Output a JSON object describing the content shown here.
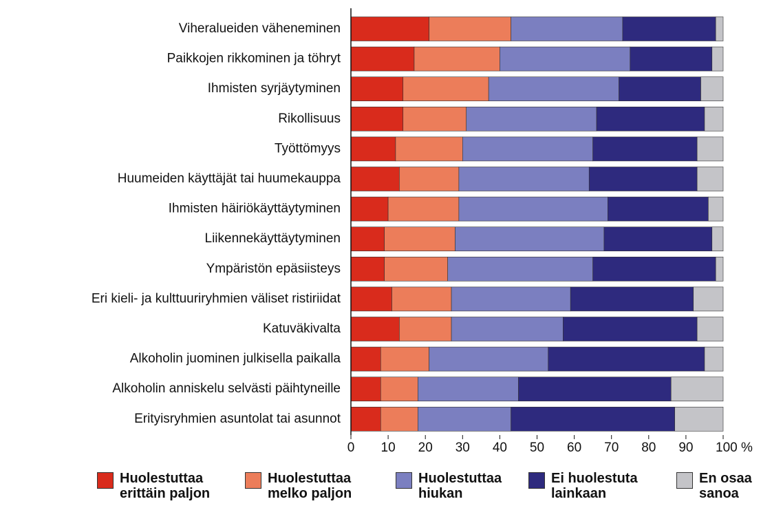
{
  "chart_data": {
    "type": "stacked-barh",
    "categories": [
      "Viheralueiden väheneminen",
      "Paikkojen rikkominen ja töhryt",
      "Ihmisten syrjäytyminen",
      "Rikollisuus",
      "Työttömyys",
      "Huumeiden käyttäjät tai huumekauppa",
      "Ihmisten häiriökäyttäytyminen",
      "Liikennekäyttäytyminen",
      "Ympäristön epäsiisteys",
      "Eri kieli- ja kulttuuriryhmien väliset ristiriidat",
      "Katuväkivalta",
      "Alkoholin juominen julkisella paikalla",
      "Alkoholin anniskelu selvästi päihtyneille",
      "Erityisryhmien asuntolat tai asunnot"
    ],
    "series": [
      {
        "name": "Huolestuttaa erittäin paljon",
        "color": "#d92b1c",
        "values": [
          21,
          17,
          14,
          14,
          12,
          13,
          10,
          9,
          9,
          11,
          13,
          8,
          8,
          8
        ]
      },
      {
        "name": "Huolestuttaa melko paljon",
        "color": "#ec7d5a",
        "values": [
          22,
          23,
          23,
          17,
          18,
          16,
          19,
          19,
          17,
          16,
          14,
          13,
          10,
          10
        ]
      },
      {
        "name": "Huolestuttaa hiukan",
        "color": "#7b7fc0",
        "values": [
          30,
          35,
          35,
          35,
          35,
          35,
          40,
          40,
          39,
          32,
          30,
          32,
          27,
          25
        ]
      },
      {
        "name": "Ei huolestuta lainkaan",
        "color": "#2e2a7e",
        "values": [
          25,
          22,
          22,
          29,
          28,
          29,
          27,
          29,
          33,
          33,
          36,
          42,
          41,
          44
        ]
      },
      {
        "name": "En osaa sanoa",
        "color": "#c4c4c8",
        "values": [
          2,
          3,
          6,
          5,
          7,
          7,
          4,
          3,
          2,
          8,
          7,
          5,
          14,
          13
        ]
      }
    ],
    "xlim": [
      0,
      100
    ],
    "xticks": [
      0,
      10,
      20,
      30,
      40,
      50,
      60,
      70,
      80,
      90,
      {
        "value": 100,
        "label": "100 %"
      }
    ]
  }
}
